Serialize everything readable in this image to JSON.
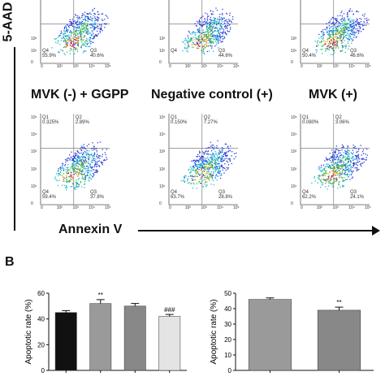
{
  "figure": {
    "y_axis_label_top": "5-AAD",
    "x_axis_label": "Annexin V",
    "panel_b_letter": "B"
  },
  "flow_panels": [
    {
      "q1": "",
      "q2": "",
      "q3": "40.6%",
      "q4": "55.9%",
      "condition": ""
    },
    {
      "q1": "",
      "q2": "",
      "q3": "44.6%",
      "q4": "",
      "condition": ""
    },
    {
      "q1": "",
      "q2": "",
      "q3": "46.6%",
      "q4": "50.4%",
      "condition": ""
    },
    {
      "q1": "0.325%",
      "q2": "2.89%",
      "q3": "37.8%",
      "q4": "59.4%",
      "condition": "MVK (-) + GGPP"
    },
    {
      "q1": "0.150%",
      "q2": "7.27%",
      "q3": "28.8%",
      "q4": "63.7%",
      "condition": "Negative control (+)"
    },
    {
      "q1": "0.080%",
      "q2": "3.06%",
      "q3": "24.1%",
      "q4": "62.2%",
      "condition": "MVK (+)"
    }
  ],
  "quadrant_names": {
    "q1": "Q1",
    "q2": "Q2",
    "q3": "Q3",
    "q4": "Q4"
  },
  "flow_ticks": {
    "y": [
      "10⁵",
      "10⁴",
      "10³",
      "10²",
      "10¹",
      "0"
    ],
    "x": [
      "0",
      "10²",
      "10³",
      "10⁴",
      "10⁵"
    ]
  },
  "colors": {
    "bar_black": "#111111",
    "bar_gray1": "#9a9a9a",
    "bar_gray2": "#888888",
    "bar_light": "#e4e4e4"
  },
  "chart_data": [
    {
      "type": "bar",
      "title": "",
      "xlabel": "",
      "ylabel": "Apoptotic rate (%)",
      "ylim": [
        0,
        60
      ],
      "yticks": [
        "60",
        "40",
        "20",
        "0"
      ],
      "categories": [
        "",
        "",
        "",
        ""
      ],
      "values": [
        45,
        52,
        50,
        42
      ],
      "errors": [
        1.5,
        3,
        2,
        1.5
      ],
      "annotations": [
        "",
        "**",
        "",
        "###"
      ]
    },
    {
      "type": "bar",
      "title": "",
      "xlabel": "",
      "ylabel": "Apoptotic rate (%)",
      "ylim": [
        0,
        50
      ],
      "yticks": [
        "50",
        "40",
        "30",
        "20",
        "10",
        "0"
      ],
      "categories": [
        "",
        ""
      ],
      "values": [
        46,
        39
      ],
      "errors": [
        1,
        2
      ],
      "annotations": [
        "",
        "**"
      ]
    }
  ]
}
